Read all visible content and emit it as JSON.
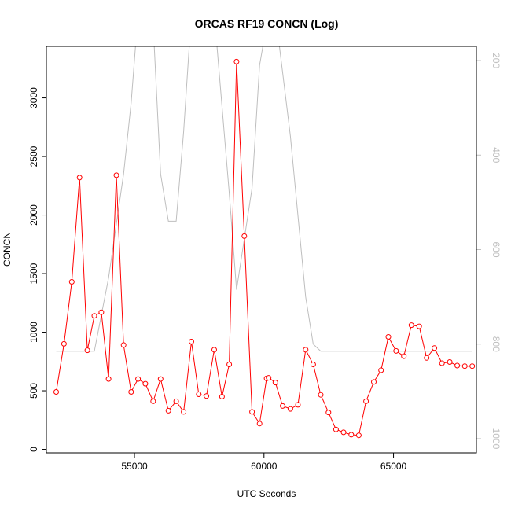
{
  "chart_data": {
    "type": "line",
    "title": "ORCAS RF19 CONCN (Log)",
    "xlabel": "UTC Seconds",
    "ylabel": "CONCN",
    "xlim": [
      51600,
      68200
    ],
    "ylim": [
      -30,
      3440
    ],
    "y2lim": [
      170,
      1030
    ],
    "y2_reversed": true,
    "x_ticks": [
      55000,
      60000,
      65000
    ],
    "y_ticks": [
      0,
      500,
      1000,
      1500,
      2000,
      2500,
      3000
    ],
    "y2_ticks": [
      200,
      400,
      600,
      800,
      1000
    ],
    "grid": false,
    "colors": {
      "concn": "#ff0000",
      "secondary": "#bebebe"
    },
    "series": [
      {
        "axis": "left",
        "color": "#ff0000",
        "markers": "open-circle",
        "x": [
          51980,
          52280,
          52580,
          52880,
          53180,
          53450,
          53720,
          54000,
          54300,
          54580,
          54870,
          55140,
          55420,
          55720,
          56010,
          56310,
          56610,
          56900,
          57200,
          57480,
          57780,
          58080,
          58380,
          58660,
          58940,
          59240,
          59540,
          59830,
          60100,
          60180,
          60440,
          60720,
          61020,
          61310,
          61610,
          61900,
          62190,
          62490,
          62780,
          63070,
          63370,
          63660,
          63940,
          64240,
          64520,
          64800,
          65100,
          65400,
          65690,
          65990,
          66280,
          66580,
          66870,
          67170,
          67460,
          67750,
          68040
        ],
        "y": [
          490,
          900,
          1430,
          2320,
          845,
          1140,
          1170,
          600,
          2340,
          890,
          490,
          600,
          560,
          410,
          600,
          330,
          410,
          320,
          920,
          470,
          455,
          850,
          450,
          725,
          3310,
          1820,
          320,
          220,
          605,
          610,
          570,
          370,
          345,
          380,
          850,
          725,
          465,
          315,
          170,
          145,
          125,
          120,
          410,
          575,
          675,
          960,
          840,
          795,
          1060,
          1050,
          780,
          865,
          735,
          745,
          715,
          710,
          710
        ]
      },
      {
        "axis": "right",
        "color": "#bebebe",
        "markers": "none",
        "x": [
          51980,
          53450,
          54000,
          54580,
          54870,
          55140,
          55700,
          56010,
          56310,
          56610,
          56900,
          57200,
          58080,
          58660,
          58940,
          59540,
          59830,
          60180,
          60440,
          61020,
          61610,
          61900,
          62190,
          68040
        ],
        "y": [
          815,
          815,
          660,
          440,
          290,
          100,
          100,
          440,
          540,
          540,
          350,
          100,
          100,
          480,
          685,
          470,
          210,
          100,
          100,
          360,
          700,
          800,
          815,
          815
        ]
      }
    ]
  }
}
